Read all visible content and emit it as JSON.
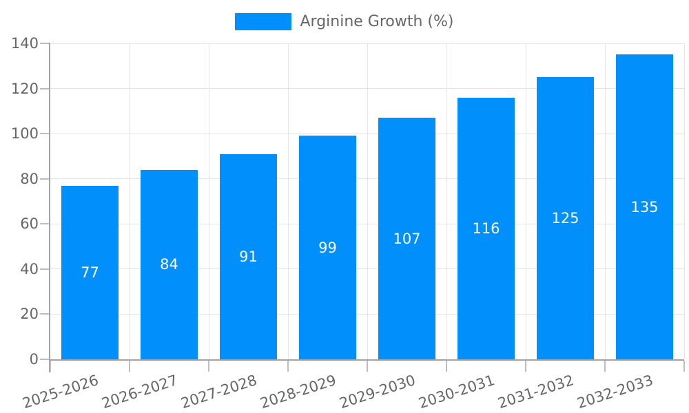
{
  "legend": {
    "position": "top",
    "items": [
      {
        "label": "Arginine Growth (%)",
        "color": "#008FFB"
      }
    ]
  },
  "chart_data": {
    "type": "bar",
    "title": "",
    "xlabel": "",
    "ylabel": "",
    "categories": [
      "2025-2026",
      "2026-2027",
      "2027-2028",
      "2028-2029",
      "2029-2030",
      "2030-2031",
      "2031-2032",
      "2032-2033"
    ],
    "series": [
      {
        "name": "Arginine Growth (%)",
        "values": [
          77,
          84,
          91,
          99,
          107,
          116,
          125,
          135
        ]
      }
    ],
    "bar_value_labels": [
      77,
      84,
      91,
      99,
      107,
      116,
      125,
      135
    ],
    "ylim": [
      0,
      140
    ],
    "yticks": [
      0,
      20,
      40,
      60,
      80,
      100,
      120,
      140
    ],
    "grid": "both",
    "legend_position": "top-center",
    "x_tick_rotation_deg": -18,
    "colors": {
      "bar": "#008FFB",
      "bar_value_text": "#FFFFFF",
      "axis_text": "#666666",
      "grid_line": "#E4E4E4",
      "axis_line": "#A3A3A3",
      "tick_mark": "#BDBDBD",
      "background": "#FFFFFF"
    }
  }
}
